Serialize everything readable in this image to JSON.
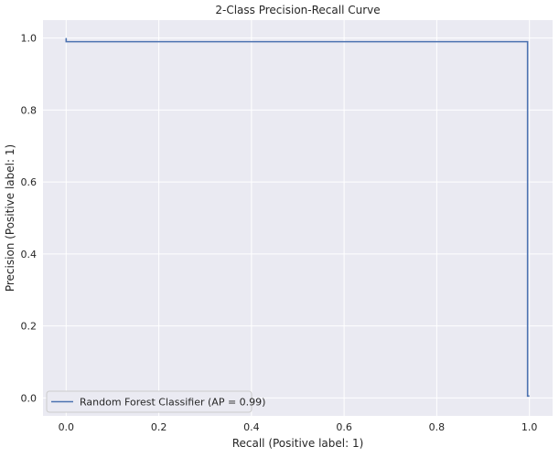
{
  "chart_data": {
    "type": "line",
    "title": "2-Class Precision-Recall Curve",
    "xlabel": "Recall (Positive label: 1)",
    "ylabel": "Precision (Positive label: 1)",
    "xlim": [
      -0.05,
      1.05
    ],
    "ylim": [
      -0.05,
      1.05
    ],
    "xticks": [
      0.0,
      0.2,
      0.4,
      0.6,
      0.8,
      1.0
    ],
    "xtick_labels": [
      "0.0",
      "0.2",
      "0.4",
      "0.6",
      "0.8",
      "1.0"
    ],
    "yticks": [
      0.0,
      0.2,
      0.4,
      0.6,
      0.8,
      1.0
    ],
    "ytick_labels": [
      "0.0",
      "0.2",
      "0.4",
      "0.6",
      "0.8",
      "1.0"
    ],
    "grid": true,
    "legend_position": "lower-left",
    "series": [
      {
        "name": "Random Forest Classifier (AP = 0.99)",
        "step": "post",
        "x": [
          0.0,
          0.0,
          0.0,
          0.996,
          0.996,
          1.0
        ],
        "y": [
          1.0,
          0.99,
          0.99,
          0.99,
          0.005,
          0.005
        ]
      }
    ]
  },
  "colors": {
    "axes_background": "#eaeaf2",
    "grid": "#ffffff",
    "series_line": "#4c72b0",
    "text": "#262626"
  }
}
